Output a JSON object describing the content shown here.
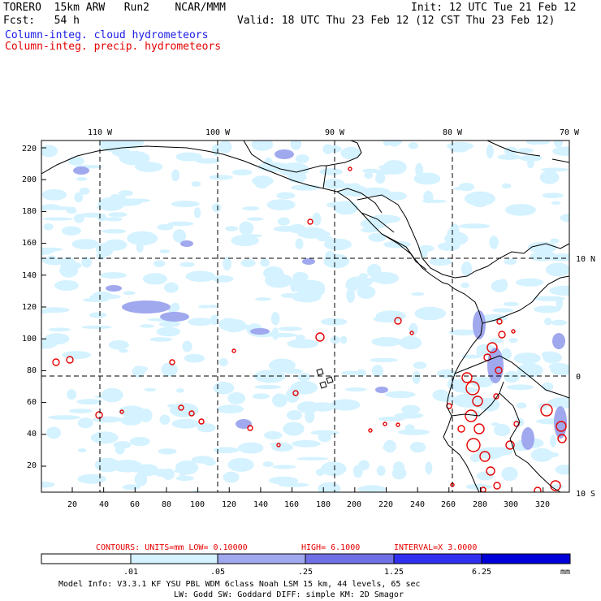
{
  "header": {
    "left_line1": "TORERO  15km ARW   Run2    NCAR/MMM",
    "left_line2": "Fcst:   54 h",
    "init": "Init: 12 UTC Tue 21 Feb 12",
    "valid": "Valid: 18 UTC Thu 23 Feb 12 (12 CST Thu 23 Feb 12)",
    "field_cloud": "Column-integ. cloud hydrometeors",
    "field_precip": "Column-integ. precip. hydrometeors"
  },
  "map": {
    "top_lon_labels": [
      "110 W",
      "100 W",
      "90 W",
      "80 W",
      "70 W"
    ],
    "right_lat_labels": [
      "10 N",
      "0",
      "10 S"
    ],
    "y_ticks": [
      "220",
      "200",
      "180",
      "160",
      "140",
      "120",
      "100",
      "80",
      "60",
      "40",
      "20"
    ],
    "x_ticks": [
      "20",
      "40",
      "60",
      "80",
      "100",
      "120",
      "140",
      "160",
      "180",
      "200",
      "220",
      "240",
      "260",
      "280",
      "300",
      "320"
    ],
    "colors": {
      "cloud_light": "#d4f2ff",
      "cloud_mid": "#a0a8ee",
      "cloud_dark": "#6a6ae6",
      "precip": "#e60000",
      "coast": "#000000"
    }
  },
  "contour_info": {
    "units": "CONTOURS:  UNITS=mm  LOW= 0.10000",
    "high": "HIGH=  6.1000",
    "interval": "INTERVAL=X  3.0000"
  },
  "colorbar": {
    "labels": [
      ".01",
      ".05",
      ".25",
      "1.25",
      "6.25"
    ],
    "units": "mm",
    "colors": [
      "#ffffff",
      "#d4f2ff",
      "#a8d6ff",
      "#a0a8ee",
      "#7070e6",
      "#3030f0",
      "#0000d8"
    ]
  },
  "footer": {
    "line1": "Model Info: V3.3.1   KF      YSU PBL  WDM 6class  Noah LSM  15 km,   44 levels,   65 sec",
    "line2": "LW: Godd SW: Goddard DIFF: simple KM: 2D Smagor"
  }
}
